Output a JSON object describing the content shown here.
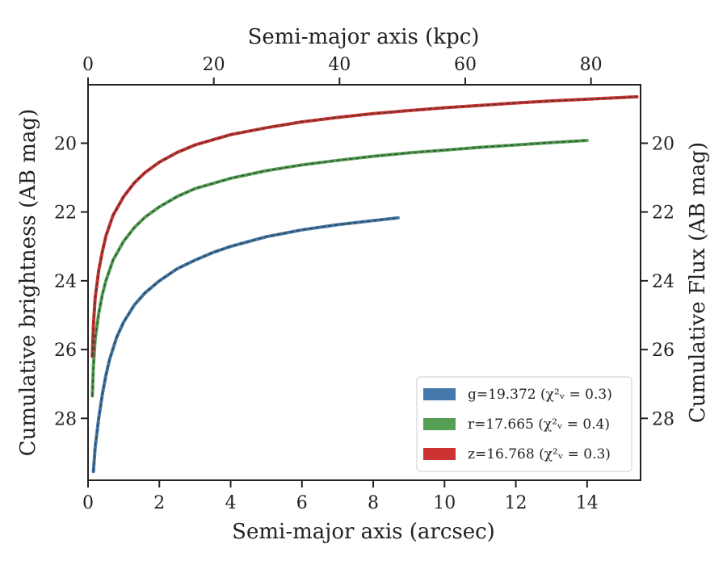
{
  "chart_data": {
    "type": "line",
    "xlabel_bottom": "Semi-major axis (arcsec)",
    "xlabel_top": "Semi-major axis (kpc)",
    "ylabel_left": "Cumulative brightness (AB mag)",
    "ylabel_right": "Cumulative Flux (AB mag)",
    "xlim": [
      0,
      15.5
    ],
    "ylim": [
      29.8,
      18.3
    ],
    "y_inverted": true,
    "x_ticks_bottom": [
      0,
      2,
      4,
      6,
      8,
      10,
      12,
      14
    ],
    "x_ticks_top": [
      0,
      20,
      40,
      60,
      80
    ],
    "kpc_per_arcsec": 5.67,
    "y_ticks": [
      20,
      22,
      24,
      26,
      28
    ],
    "grid": false,
    "legend_position": "lower-right",
    "series": [
      {
        "name": "g=19.372",
        "chi_label": "(χ²ᵥ = 0.3)",
        "color": "#4477aa",
        "x": [
          0.15,
          0.2,
          0.3,
          0.4,
          0.5,
          0.6,
          0.8,
          1.0,
          1.3,
          1.6,
          2.0,
          2.5,
          3.0,
          3.5,
          4.0,
          5.0,
          6.0,
          7.0,
          8.0,
          8.7
        ],
        "y": [
          29.55,
          28.85,
          28.0,
          27.3,
          26.75,
          26.3,
          25.65,
          25.2,
          24.7,
          24.35,
          24.0,
          23.65,
          23.4,
          23.18,
          23.0,
          22.72,
          22.52,
          22.37,
          22.25,
          22.17
        ]
      },
      {
        "name": "r=17.665",
        "chi_label": "(χ²ᵥ = 0.4)",
        "color": "#55a055",
        "x": [
          0.12,
          0.15,
          0.2,
          0.3,
          0.4,
          0.5,
          0.7,
          1.0,
          1.3,
          1.6,
          2.0,
          2.5,
          3.0,
          4.0,
          5.0,
          6.0,
          7.0,
          8.0,
          9.0,
          10.0,
          11.0,
          12.0,
          13.0,
          14.0
        ],
        "y": [
          27.35,
          26.5,
          25.7,
          24.95,
          24.4,
          24.0,
          23.4,
          22.85,
          22.45,
          22.15,
          21.85,
          21.55,
          21.32,
          21.02,
          20.8,
          20.63,
          20.5,
          20.38,
          20.28,
          20.2,
          20.12,
          20.05,
          19.98,
          19.92
        ]
      },
      {
        "name": "z=16.768",
        "chi_label": "(χ²ᵥ = 0.3)",
        "color": "#cc3333",
        "x": [
          0.12,
          0.15,
          0.2,
          0.3,
          0.4,
          0.5,
          0.7,
          1.0,
          1.3,
          1.6,
          2.0,
          2.5,
          3.0,
          4.0,
          5.0,
          6.0,
          7.0,
          8.0,
          9.0,
          10.0,
          11.0,
          12.0,
          13.0,
          14.0,
          15.0,
          15.4
        ],
        "y": [
          26.2,
          25.3,
          24.5,
          23.7,
          23.15,
          22.7,
          22.1,
          21.55,
          21.15,
          20.85,
          20.55,
          20.27,
          20.05,
          19.75,
          19.55,
          19.38,
          19.25,
          19.14,
          19.05,
          18.97,
          18.9,
          18.83,
          18.77,
          18.72,
          18.67,
          18.65
        ]
      }
    ]
  }
}
